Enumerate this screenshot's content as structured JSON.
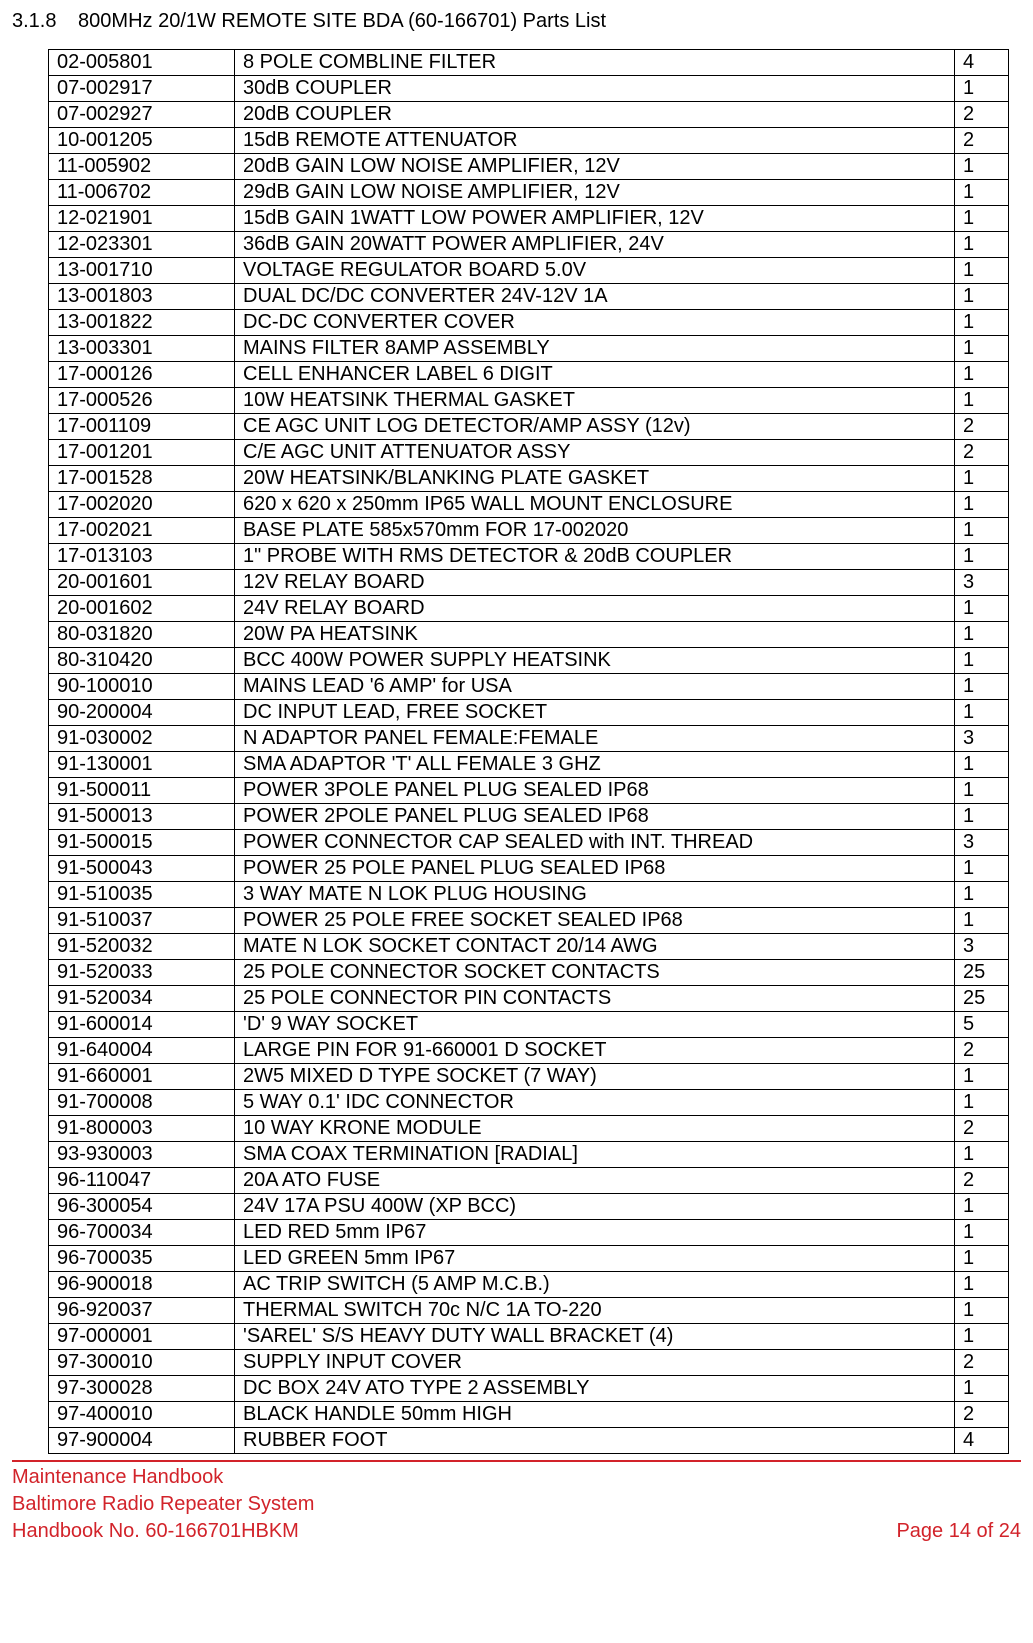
{
  "section": {
    "number": "3.1.8",
    "title": "800MHz 20/1W REMOTE SITE BDA (60-166701) Parts List"
  },
  "table": {
    "col_widths_pct": [
      19.4,
      75.0,
      5.6
    ],
    "rows": [
      [
        "02-005801",
        "8 POLE COMBLINE FILTER",
        "4"
      ],
      [
        "07-002917",
        "30dB COUPLER",
        "1"
      ],
      [
        "07-002927",
        "20dB COUPLER",
        "2"
      ],
      [
        "10-001205",
        "15dB REMOTE ATTENUATOR",
        "2"
      ],
      [
        "11-005902",
        "20dB GAIN LOW NOISE AMPLIFIER, 12V",
        "1"
      ],
      [
        "11-006702",
        "29dB GAIN LOW NOISE AMPLIFIER, 12V",
        "1"
      ],
      [
        "12-021901",
        "15dB GAIN 1WATT LOW POWER AMPLIFIER, 12V",
        "1"
      ],
      [
        "12-023301",
        "36dB GAIN 20WATT POWER AMPLIFIER, 24V",
        "1"
      ],
      [
        "13-001710",
        "VOLTAGE REGULATOR BOARD 5.0V",
        "1"
      ],
      [
        "13-001803",
        "DUAL DC/DC CONVERTER 24V-12V 1A",
        "1"
      ],
      [
        "13-001822",
        "DC-DC CONVERTER COVER",
        "1"
      ],
      [
        "13-003301",
        "MAINS FILTER 8AMP ASSEMBLY",
        "1"
      ],
      [
        "17-000126",
        "CELL ENHANCER LABEL 6 DIGIT",
        "1"
      ],
      [
        "17-000526",
        "10W HEATSINK THERMAL GASKET",
        "1"
      ],
      [
        "17-001109",
        "CE AGC UNIT LOG DETECTOR/AMP ASSY (12v)",
        "2"
      ],
      [
        "17-001201",
        "C/E AGC UNIT ATTENUATOR ASSY",
        "2"
      ],
      [
        "17-001528",
        "20W HEATSINK/BLANKING PLATE GASKET",
        "1"
      ],
      [
        "17-002020",
        "620 x 620 x 250mm IP65 WALL MOUNT ENCLOSURE",
        "1"
      ],
      [
        "17-002021",
        "BASE PLATE 585x570mm FOR 17-002020",
        "1"
      ],
      [
        "17-013103",
        "1\" PROBE WITH RMS DETECTOR & 20dB COUPLER",
        "1"
      ],
      [
        "20-001601",
        "12V RELAY BOARD",
        "3"
      ],
      [
        "20-001602",
        "24V RELAY BOARD",
        "1"
      ],
      [
        "80-031820",
        "20W PA HEATSINK",
        "1"
      ],
      [
        "80-310420",
        "BCC 400W POWER SUPPLY HEATSINK",
        "1"
      ],
      [
        "90-100010",
        "MAINS LEAD '6 AMP' for USA",
        "1"
      ],
      [
        "90-200004",
        "DC INPUT LEAD, FREE SOCKET",
        "1"
      ],
      [
        "91-030002",
        "N ADAPTOR PANEL FEMALE:FEMALE",
        "3"
      ],
      [
        "91-130001",
        "SMA ADAPTOR 'T' ALL FEMALE 3 GHZ",
        "1"
      ],
      [
        "91-500011",
        "POWER 3POLE PANEL PLUG SEALED IP68",
        "1"
      ],
      [
        "91-500013",
        "POWER 2POLE PANEL PLUG SEALED IP68",
        "1"
      ],
      [
        "91-500015",
        "POWER CONNECTOR CAP SEALED with INT. THREAD",
        "3"
      ],
      [
        "91-500043",
        "POWER 25 POLE PANEL PLUG SEALED IP68",
        "1"
      ],
      [
        "91-510035",
        "3 WAY MATE N LOK PLUG HOUSING",
        "1"
      ],
      [
        "91-510037",
        "POWER 25 POLE FREE SOCKET SEALED IP68",
        "1"
      ],
      [
        "91-520032",
        "MATE N LOK SOCKET CONTACT 20/14 AWG",
        "3"
      ],
      [
        "91-520033",
        "25 POLE CONNECTOR  SOCKET CONTACTS",
        "25"
      ],
      [
        "91-520034",
        "25 POLE CONNECTOR  PIN CONTACTS",
        "25"
      ],
      [
        "91-600014",
        "'D' 9 WAY SOCKET",
        "5"
      ],
      [
        "91-640004",
        "LARGE PIN FOR 91-660001 D SOCKET",
        "2"
      ],
      [
        "91-660001",
        "2W5 MIXED D TYPE SOCKET (7 WAY)",
        "1"
      ],
      [
        "91-700008",
        "5 WAY 0.1' IDC CONNECTOR",
        "1"
      ],
      [
        "91-800003",
        "10 WAY KRONE MODULE",
        "2"
      ],
      [
        "93-930003",
        "SMA COAX TERMINATION [RADIAL]",
        "1"
      ],
      [
        "96-110047",
        "20A ATO FUSE",
        "2"
      ],
      [
        "96-300054",
        "24V 17A PSU 400W (XP BCC)",
        "1"
      ],
      [
        "96-700034",
        "LED RED 5mm  IP67",
        "1"
      ],
      [
        "96-700035",
        "LED GREEN 5mm IP67",
        "1"
      ],
      [
        "96-900018",
        "AC TRIP SWITCH (5 AMP M.C.B.)",
        "1"
      ],
      [
        "96-920037",
        "THERMAL SWITCH 70c N/C  1A TO-220",
        "1"
      ],
      [
        "97-000001",
        "'SAREL' S/S HEAVY DUTY WALL BRACKET (4)",
        "1"
      ],
      [
        "97-300010",
        "SUPPLY INPUT COVER",
        "2"
      ],
      [
        "97-300028",
        "DC BOX 24V ATO TYPE 2 ASSEMBLY",
        "1"
      ],
      [
        "97-400010",
        "BLACK  HANDLE 50mm HIGH",
        "2"
      ],
      [
        "97-900004",
        "RUBBER FOOT",
        "4"
      ]
    ]
  },
  "footer": {
    "line1": "Maintenance Handbook",
    "line2": "Baltimore Radio Repeater System",
    "handbook": "Handbook No. 60-166701HBKM",
    "page": "Page 14 of 24",
    "color": "#d2232a"
  }
}
